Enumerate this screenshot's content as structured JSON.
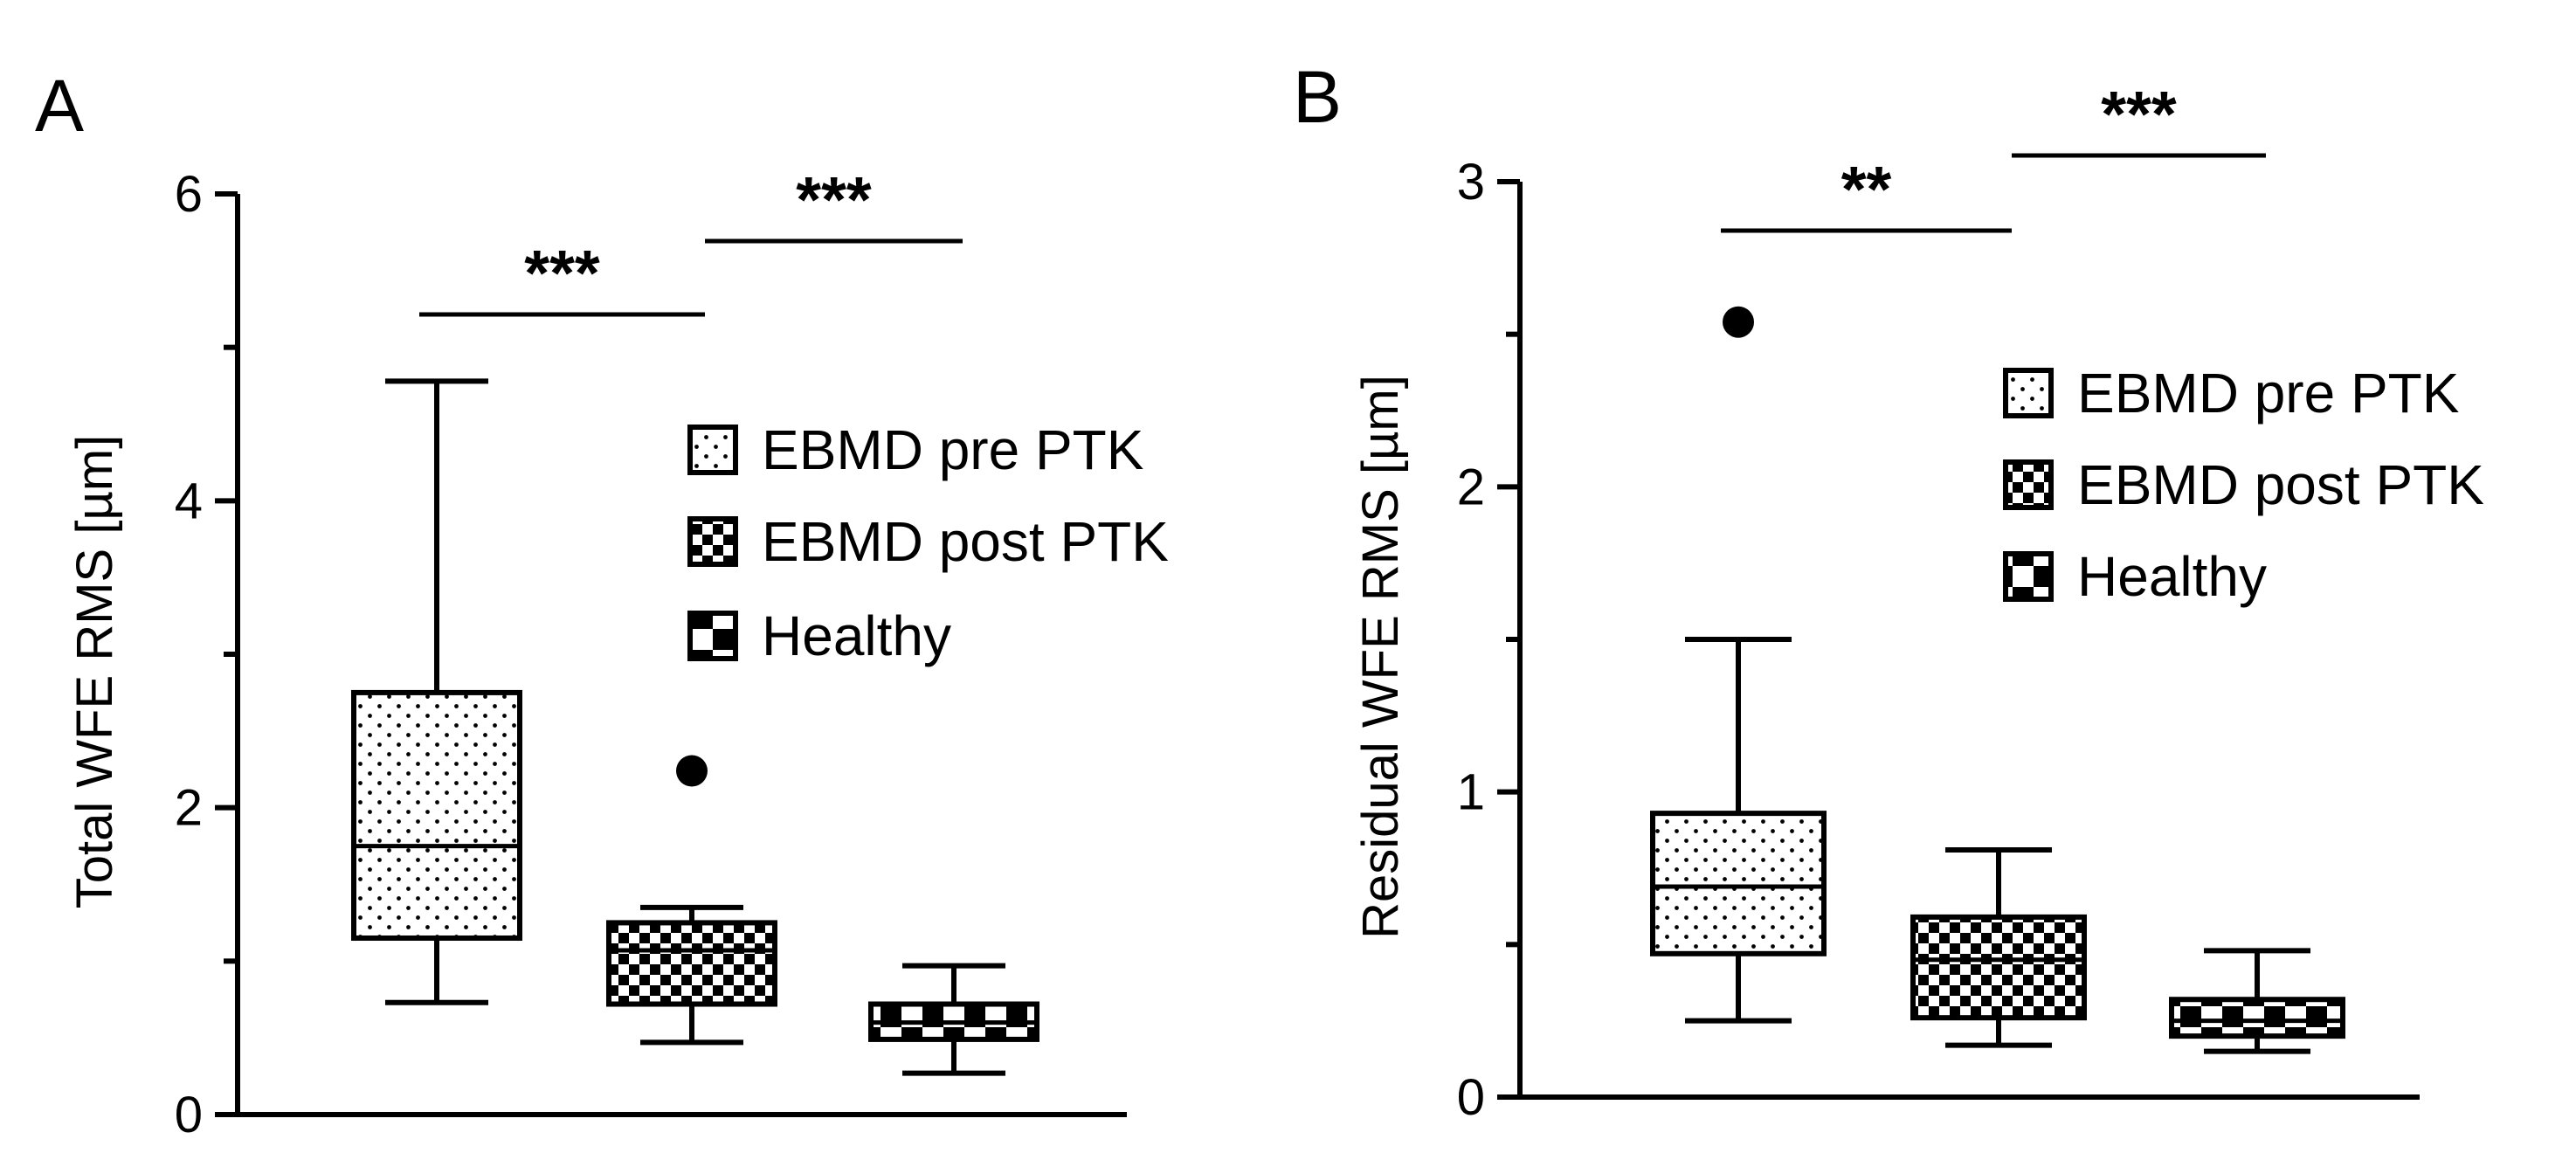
{
  "chart_data": [
    {
      "panel": "A",
      "type": "box",
      "ylabel": "Total WFE RMS [µm]",
      "ylim": [
        0,
        6
      ],
      "yticks": [
        "0",
        "2",
        "4",
        "6"
      ],
      "legend_position": "top-right",
      "series": [
        {
          "name": "EBMD pre PTK",
          "pattern": "dots",
          "min": 0.73,
          "q1": 1.15,
          "median": 1.75,
          "q3": 2.75,
          "max": 4.78,
          "outliers": []
        },
        {
          "name": "EBMD post PTK",
          "pattern": "checker",
          "min": 0.47,
          "q1": 0.72,
          "median": 1.07,
          "q3": 1.25,
          "max": 1.35,
          "outliers": [
            2.24
          ]
        },
        {
          "name": "Healthy",
          "pattern": "large-checker",
          "min": 0.27,
          "q1": 0.49,
          "median": 0.6,
          "q3": 0.72,
          "max": 0.97,
          "outliers": []
        }
      ],
      "significance": [
        {
          "from": 0,
          "to": 1,
          "label": "***"
        },
        {
          "from": 1,
          "to": 2,
          "label": "***"
        }
      ]
    },
    {
      "panel": "B",
      "type": "box",
      "ylabel": "Residual WFE RMS [µm]",
      "ylim": [
        0,
        3
      ],
      "yticks": [
        "0",
        "1",
        "2",
        "3"
      ],
      "legend_position": "top-right",
      "series": [
        {
          "name": "EBMD pre PTK",
          "pattern": "dots",
          "min": 0.25,
          "q1": 0.47,
          "median": 0.69,
          "q3": 0.93,
          "max": 1.5,
          "outliers": [
            2.54
          ]
        },
        {
          "name": "EBMD post PTK",
          "pattern": "checker",
          "min": 0.17,
          "q1": 0.26,
          "median": 0.45,
          "q3": 0.59,
          "max": 0.81,
          "outliers": []
        },
        {
          "name": "Healthy",
          "pattern": "large-checker",
          "min": 0.15,
          "q1": 0.2,
          "median": 0.25,
          "q3": 0.32,
          "max": 0.48,
          "outliers": []
        }
      ],
      "significance": [
        {
          "from": 0,
          "to": 1,
          "label": "**"
        },
        {
          "from": 1,
          "to": 2,
          "label": "***"
        }
      ]
    }
  ]
}
